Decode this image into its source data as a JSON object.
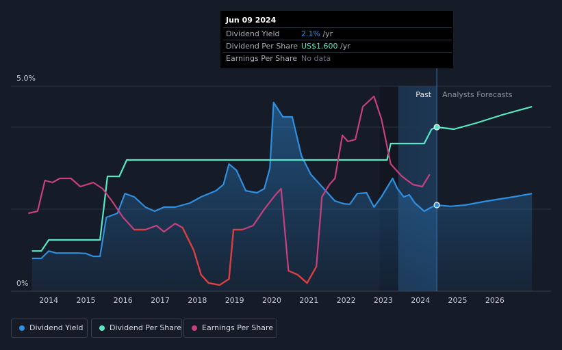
{
  "tooltip": {
    "date": "Jun 09 2024",
    "rows": [
      {
        "label": "Dividend Yield",
        "value": "2.1%",
        "unit": " /yr",
        "color": "#2f8fe0"
      },
      {
        "label": "Dividend Per Share",
        "value": "US$1.600",
        "unit": " /yr",
        "color": "#58e8c8"
      },
      {
        "label": "Earnings Per Share",
        "value": "No data",
        "unit": "",
        "color": "#6c7280"
      }
    ]
  },
  "legend": [
    {
      "label": "Dividend Yield",
      "color": "#2f8fe0"
    },
    {
      "label": "Dividend Per Share",
      "color": "#58e8c8"
    },
    {
      "label": "Earnings Per Share",
      "color": "#c8407e"
    }
  ],
  "chart_data": {
    "type": "line",
    "ylim": [
      0,
      5.0
    ],
    "y_tick_labels": [
      "0%",
      "5.0%"
    ],
    "x_tick_labels": [
      "2014",
      "2015",
      "2016",
      "2017",
      "2018",
      "2019",
      "2020",
      "2021",
      "2022",
      "2023",
      "2024",
      "2025",
      "2026"
    ],
    "past_label": "Past",
    "forecast_label": "Analysts Forecasts",
    "forecast_start": 2023.4,
    "today": 2024.44,
    "x_range": [
      2013.5,
      2027.0
    ],
    "series": [
      {
        "name": "Dividend Yield",
        "color": "#2f8fe0",
        "fill": true,
        "points": [
          [
            2013.55,
            0.8
          ],
          [
            2013.8,
            0.8
          ],
          [
            2014.0,
            0.98
          ],
          [
            2014.2,
            0.93
          ],
          [
            2014.5,
            0.93
          ],
          [
            2014.8,
            0.93
          ],
          [
            2015.0,
            0.92
          ],
          [
            2015.2,
            0.85
          ],
          [
            2015.38,
            0.85
          ],
          [
            2015.55,
            1.8
          ],
          [
            2015.85,
            1.9
          ],
          [
            2016.05,
            2.38
          ],
          [
            2016.3,
            2.3
          ],
          [
            2016.6,
            2.05
          ],
          [
            2016.85,
            1.95
          ],
          [
            2017.1,
            2.05
          ],
          [
            2017.4,
            2.05
          ],
          [
            2017.8,
            2.15
          ],
          [
            2018.1,
            2.3
          ],
          [
            2018.5,
            2.45
          ],
          [
            2018.7,
            2.6
          ],
          [
            2018.85,
            3.1
          ],
          [
            2019.05,
            2.95
          ],
          [
            2019.3,
            2.45
          ],
          [
            2019.6,
            2.4
          ],
          [
            2019.8,
            2.5
          ],
          [
            2019.95,
            3.0
          ],
          [
            2020.05,
            4.6
          ],
          [
            2020.3,
            4.25
          ],
          [
            2020.55,
            4.25
          ],
          [
            2020.8,
            3.3
          ],
          [
            2021.05,
            2.85
          ],
          [
            2021.25,
            2.65
          ],
          [
            2021.45,
            2.45
          ],
          [
            2021.7,
            2.2
          ],
          [
            2021.95,
            2.13
          ],
          [
            2022.1,
            2.12
          ],
          [
            2022.3,
            2.38
          ],
          [
            2022.55,
            2.4
          ],
          [
            2022.75,
            2.05
          ],
          [
            2022.95,
            2.3
          ],
          [
            2023.25,
            2.75
          ],
          [
            2023.38,
            2.5
          ],
          [
            2023.55,
            2.3
          ],
          [
            2023.7,
            2.35
          ],
          [
            2023.85,
            2.15
          ],
          [
            2024.1,
            1.95
          ],
          [
            2024.3,
            2.05
          ],
          [
            2024.44,
            2.1
          ],
          [
            2024.8,
            2.07
          ],
          [
            2025.2,
            2.1
          ],
          [
            2025.8,
            2.2
          ],
          [
            2026.5,
            2.3
          ],
          [
            2027.0,
            2.38
          ]
        ]
      },
      {
        "name": "Dividend Per Share",
        "color": "#58e8c8",
        "fill": false,
        "points": [
          [
            2013.55,
            0.98
          ],
          [
            2013.8,
            0.98
          ],
          [
            2014.0,
            1.25
          ],
          [
            2015.38,
            1.25
          ],
          [
            2015.58,
            2.8
          ],
          [
            2015.9,
            2.8
          ],
          [
            2016.1,
            3.2
          ],
          [
            2023.1,
            3.2
          ],
          [
            2023.2,
            3.6
          ],
          [
            2024.1,
            3.6
          ],
          [
            2024.3,
            3.95
          ],
          [
            2024.44,
            4.0
          ],
          [
            2024.9,
            3.95
          ],
          [
            2025.5,
            4.1
          ],
          [
            2026.2,
            4.3
          ],
          [
            2027.0,
            4.5
          ]
        ]
      },
      {
        "name": "Earnings Per Share",
        "color": "#c8407e",
        "fill": false,
        "points": [
          [
            2013.45,
            1.9
          ],
          [
            2013.7,
            1.95
          ],
          [
            2013.9,
            2.7
          ],
          [
            2014.1,
            2.65
          ],
          [
            2014.3,
            2.75
          ],
          [
            2014.6,
            2.75
          ],
          [
            2014.85,
            2.55
          ],
          [
            2015.2,
            2.65
          ],
          [
            2015.45,
            2.5
          ],
          [
            2015.7,
            2.2
          ],
          [
            2016.0,
            1.8
          ],
          [
            2016.3,
            1.5
          ],
          [
            2016.6,
            1.5
          ],
          [
            2016.9,
            1.6
          ],
          [
            2017.1,
            1.45
          ],
          [
            2017.4,
            1.65
          ],
          [
            2017.6,
            1.55
          ],
          [
            2017.9,
            1.0
          ],
          [
            2018.1,
            0.4
          ],
          [
            2018.3,
            0.2
          ],
          [
            2018.6,
            0.15
          ],
          [
            2018.85,
            0.3
          ],
          [
            2018.97,
            1.5
          ],
          [
            2019.2,
            1.5
          ],
          [
            2019.5,
            1.6
          ],
          [
            2019.8,
            2.0
          ],
          [
            2020.1,
            2.35
          ],
          [
            2020.25,
            2.5
          ],
          [
            2020.45,
            0.5
          ],
          [
            2020.7,
            0.4
          ],
          [
            2020.95,
            0.2
          ],
          [
            2021.2,
            0.6
          ],
          [
            2021.35,
            2.3
          ],
          [
            2021.55,
            2.6
          ],
          [
            2021.7,
            2.75
          ],
          [
            2021.9,
            3.8
          ],
          [
            2022.05,
            3.65
          ],
          [
            2022.25,
            3.7
          ],
          [
            2022.45,
            4.5
          ],
          [
            2022.75,
            4.75
          ],
          [
            2022.95,
            4.2
          ],
          [
            2023.2,
            3.1
          ],
          [
            2023.5,
            2.8
          ],
          [
            2023.8,
            2.6
          ],
          [
            2024.05,
            2.55
          ],
          [
            2024.25,
            2.85
          ]
        ]
      }
    ],
    "markers": [
      {
        "series": "Dividend Yield",
        "x": 2024.44,
        "y": 2.1
      },
      {
        "series": "Dividend Per Share",
        "x": 2024.44,
        "y": 4.0
      }
    ]
  }
}
